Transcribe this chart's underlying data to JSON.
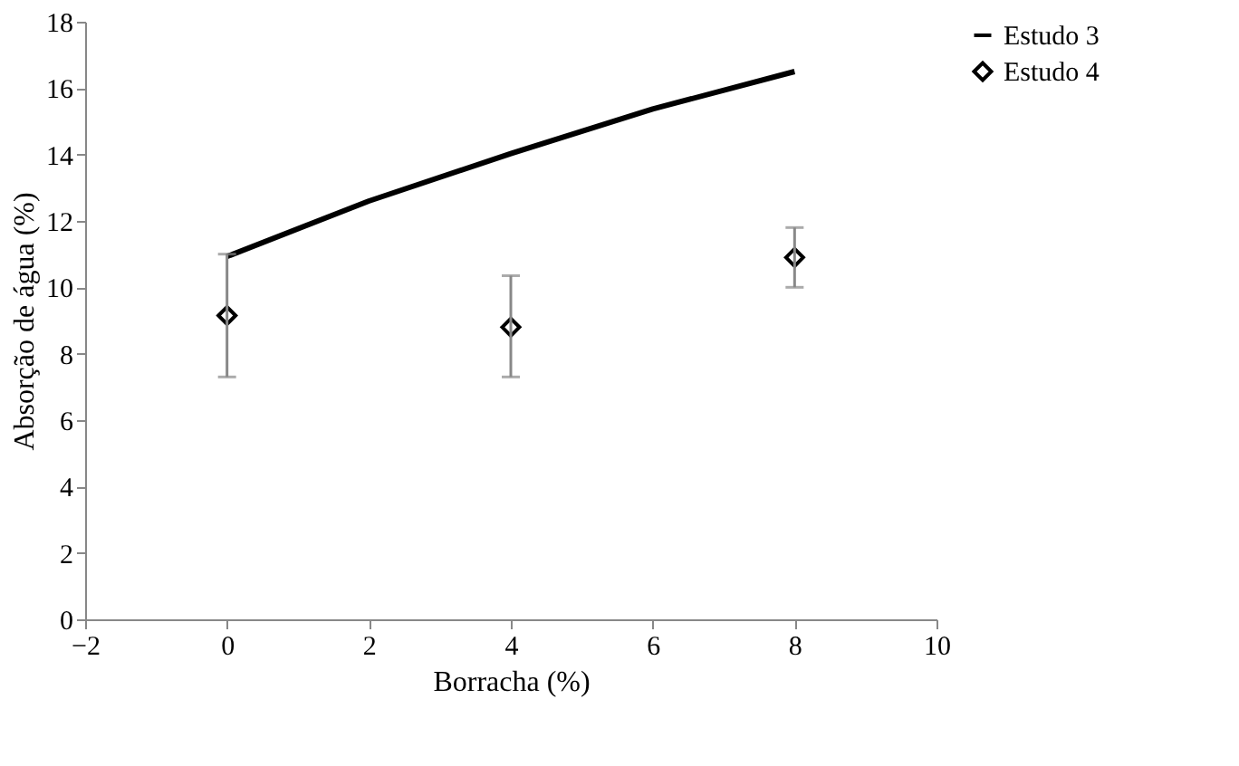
{
  "chart_data": {
    "type": "scatter",
    "xlabel": "Borracha (%)",
    "ylabel": "Absorção de água (%)",
    "xlim": [
      -2,
      10
    ],
    "xticks": [
      -2,
      0,
      2,
      4,
      6,
      8,
      10
    ],
    "ylim": [
      0,
      18
    ],
    "yticks": [
      0,
      2,
      4,
      6,
      8,
      10,
      12,
      14,
      16,
      18
    ],
    "grid": false,
    "legend": "top right",
    "series": [
      {
        "name": "Estudo 3",
        "type": "line",
        "color": "#000000",
        "x": [
          0,
          2,
          4,
          6,
          8
        ],
        "values": [
          10.93,
          12.6,
          14.03,
          15.37,
          16.5
        ],
        "marker": "none",
        "line_style": "solid"
      },
      {
        "name": "Estudo 4",
        "color": "#000000",
        "x": [
          0,
          4,
          8
        ],
        "values": [
          9.15,
          8.8,
          10.9
        ],
        "marker": "diamond",
        "errors": [
          [
            7.3,
            11.0
          ],
          [
            7.3,
            10.35
          ],
          [
            10.0,
            11.8
          ]
        ]
      }
    ]
  }
}
